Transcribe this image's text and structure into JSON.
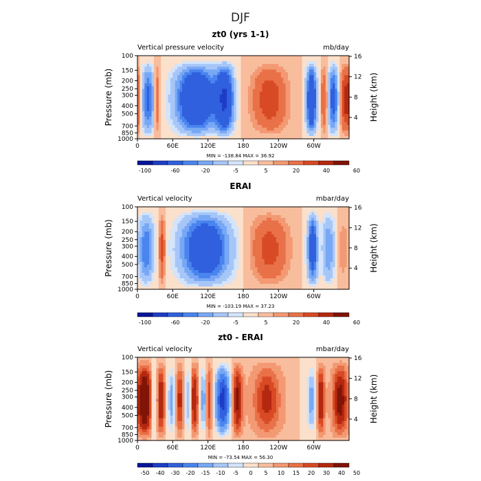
{
  "figure_title": "DJF",
  "x_ticks": [
    "0",
    "60E",
    "120E",
    "180",
    "120W",
    "60W"
  ],
  "y_ticks": [
    "100",
    "150",
    "200",
    "250",
    "300",
    "400",
    "500",
    "700",
    "850",
    "1000"
  ],
  "height_ticks": [
    "16",
    "12",
    "8",
    "4"
  ],
  "y_axis_label": "Pressure (mb)",
  "height_axis_label": "Height (km)",
  "colors": {
    "palette": [
      "#08169a",
      "#1d3dc7",
      "#3060dd",
      "#4a84ee",
      "#78a8f5",
      "#a7c6f8",
      "#d3e4fb",
      "#fbe0cb",
      "#f8bd9d",
      "#f39973",
      "#e97148",
      "#d84a25",
      "#b42810",
      "#801407"
    ]
  },
  "chart_data": [
    {
      "type": "heatmap",
      "title": "zt0 (yrs 1-1)",
      "left_label": "Vertical pressure velocity",
      "units": "mb/day",
      "stats": "MIN = -138.84   MAX =  36.92",
      "min": -138.84,
      "max": 36.92,
      "colorbar_levels": [
        "",
        "-100",
        "",
        "-60",
        "",
        "-20",
        "",
        "-5",
        "",
        "5",
        "",
        "20",
        "",
        "40",
        "",
        "60"
      ],
      "xlim": [
        0,
        360
      ],
      "ylim_mb": [
        1000,
        100
      ]
    },
    {
      "type": "heatmap",
      "title": "ERAI",
      "left_label": "Vertical velocity",
      "units": "mbar/day",
      "stats": "MIN = -103.19   MAX =  37.23",
      "min": -103.19,
      "max": 37.23,
      "colorbar_levels": [
        "",
        "-100",
        "",
        "-60",
        "",
        "-20",
        "",
        "-5",
        "",
        "5",
        "",
        "20",
        "",
        "40",
        "",
        "60"
      ],
      "xlim": [
        0,
        360
      ],
      "ylim_mb": [
        1000,
        100
      ]
    },
    {
      "type": "heatmap",
      "title": "zt0 - ERAI",
      "left_label": "Vertical velocity",
      "units": "mbar/day",
      "stats": "MIN = -73.54   MAX =  56.30",
      "min": -73.54,
      "max": 56.3,
      "colorbar_levels": [
        "",
        "-50",
        "-40",
        "-30",
        "-20",
        "-15",
        "-10",
        "-5",
        "0",
        "5",
        "10",
        "15",
        "20",
        "30",
        "40",
        "50"
      ],
      "xlim": [
        0,
        360
      ],
      "ylim_mb": [
        1000,
        100
      ]
    }
  ]
}
